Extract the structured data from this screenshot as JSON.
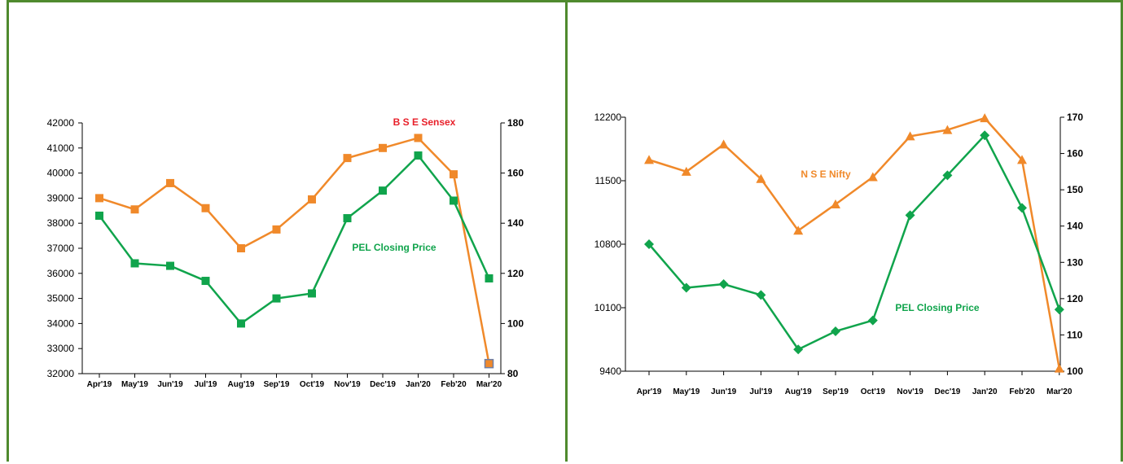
{
  "chart_data": [
    {
      "type": "line",
      "categories": [
        "Apr'19",
        "May'19",
        "Jun'19",
        "Jul'19",
        "Aug'19",
        "Sep'19",
        "Oct'19",
        "Nov'19",
        "Dec'19",
        "Jan'20",
        "Feb'20",
        "Mar'20"
      ],
      "series": [
        {
          "name": "B S E Sensex",
          "axis": "left",
          "color": "#f0892a",
          "marker": "square",
          "values": [
            39000,
            38550,
            39600,
            38600,
            37000,
            37750,
            38950,
            40600,
            41000,
            41400,
            39950,
            32400
          ]
        },
        {
          "name": "PEL Closing Price",
          "axis": "right",
          "color": "#10a44c",
          "marker": "square",
          "values": [
            143,
            124,
            123,
            117,
            100,
            110,
            112,
            142,
            153,
            167,
            149,
            118
          ]
        }
      ],
      "y_left": {
        "ylim": [
          32000,
          42000
        ],
        "ticks": [
          "42000",
          "41000",
          "40000",
          "39000",
          "38000",
          "37000",
          "36000",
          "35000",
          "34000",
          "33000",
          "32000"
        ]
      },
      "y_right": {
        "ylim": [
          80,
          180
        ],
        "ticks": [
          "180",
          "160",
          "140",
          "120",
          "100",
          "80"
        ]
      },
      "annotations": [
        {
          "text": "B S E Sensex",
          "color": "#e8202a"
        },
        {
          "text": "PEL Closing Price",
          "color": "#10a44c"
        }
      ]
    },
    {
      "type": "line",
      "categories": [
        "Apr'19",
        "May'19",
        "Jun'19",
        "Jul'19",
        "Aug'19",
        "Sep'19",
        "Oct'19",
        "Nov'19",
        "Dec'19",
        "Jan'20",
        "Feb'20",
        "Mar'20"
      ],
      "series": [
        {
          "name": "N S E Nifty",
          "axis": "left",
          "color": "#f0892a",
          "marker": "triangle",
          "values": [
            11730,
            11600,
            11900,
            11520,
            10950,
            11240,
            11540,
            11990,
            12060,
            12190,
            11730,
            9430
          ]
        },
        {
          "name": "PEL Closing Price",
          "axis": "right",
          "color": "#10a44c",
          "marker": "diamond",
          "values": [
            135,
            123,
            124,
            121,
            106,
            111,
            114,
            143,
            154,
            165,
            145,
            117
          ]
        }
      ],
      "y_left": {
        "ylim": [
          9400,
          12200
        ],
        "ticks": [
          "12200",
          "11500",
          "10800",
          "10100",
          "9400"
        ]
      },
      "y_right": {
        "ylim": [
          100,
          170
        ],
        "ticks": [
          "170",
          "160",
          "150",
          "140",
          "130",
          "120",
          "110",
          "100"
        ]
      },
      "annotations": [
        {
          "text": "N S E Nifty",
          "color": "#f0892a"
        },
        {
          "text": "PEL Closing Price",
          "color": "#10a44c"
        }
      ]
    }
  ]
}
